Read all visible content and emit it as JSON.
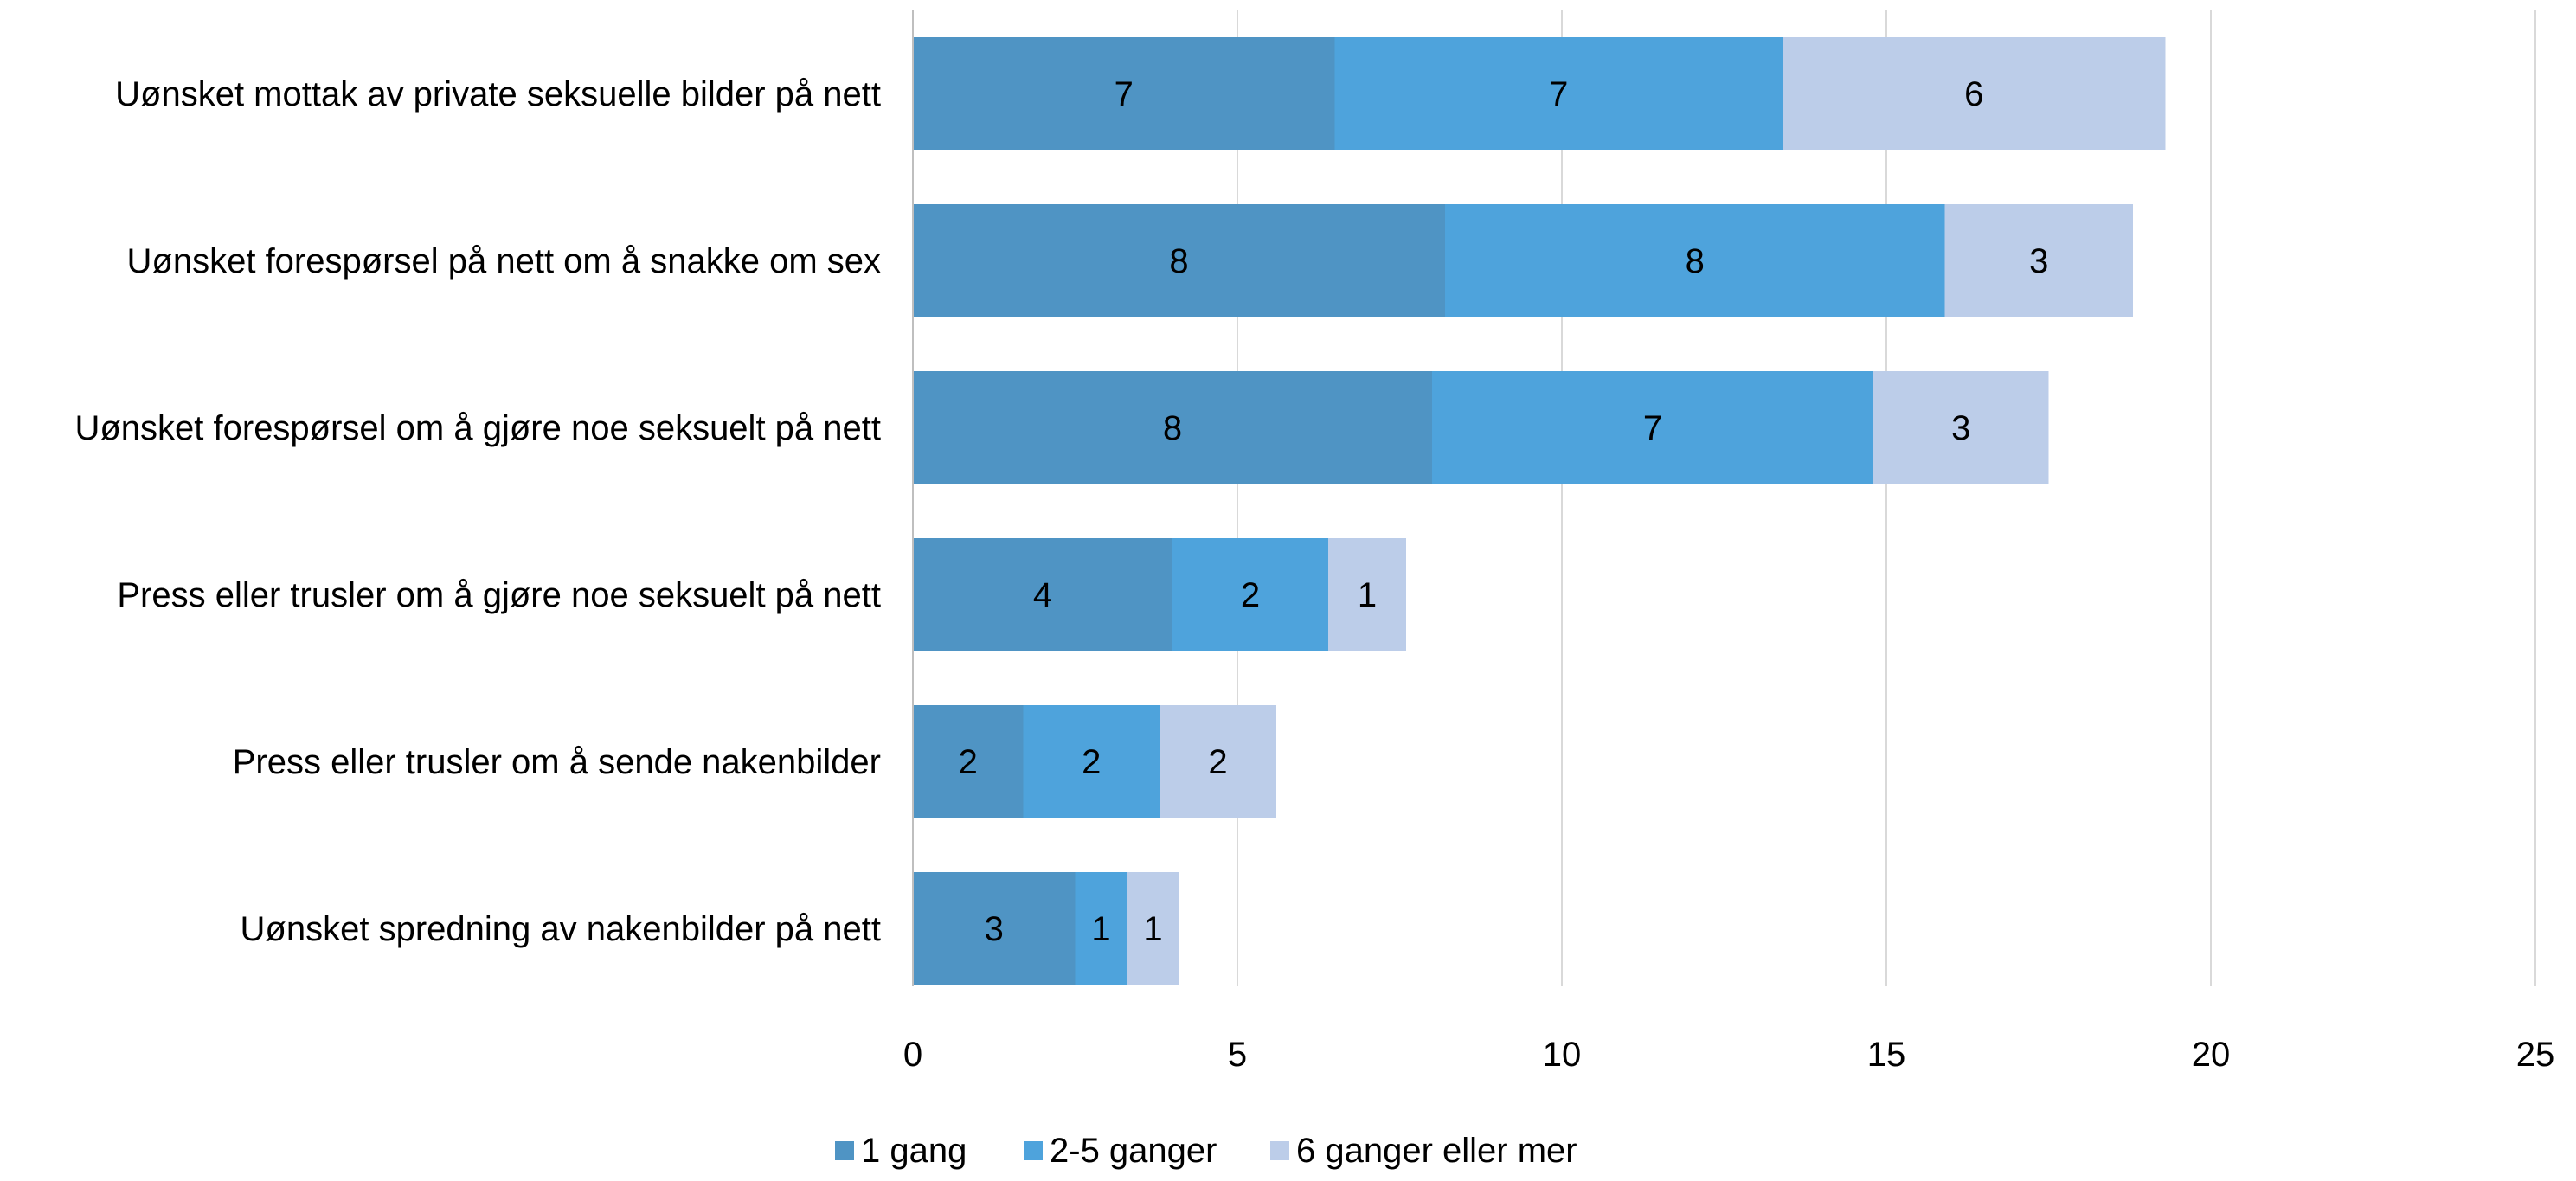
{
  "chart_data": {
    "type": "bar",
    "orientation": "horizontal",
    "stacked": true,
    "categories": [
      "Uønsket mottak av private seksuelle bilder på nett",
      "Uønsket forespørsel på nett om å snakke om sex",
      "Uønsket forespørsel om å gjøre noe seksuelt på nett",
      "Press eller trusler om å gjøre noe seksuelt på nett",
      "Press eller trusler om å sende nakenbilder",
      "Uønsket spredning av nakenbilder på nett"
    ],
    "series": [
      {
        "name": "1 gang",
        "color": "#4f94c4",
        "values": [
          6.5,
          8.2,
          8.0,
          4.0,
          1.7,
          2.5
        ],
        "labels": [
          "7",
          "8",
          "8",
          "4",
          "2",
          "3"
        ]
      },
      {
        "name": "2-5 ganger",
        "color": "#4ea3dc",
        "values": [
          6.9,
          7.7,
          6.8,
          2.4,
          2.1,
          0.8
        ],
        "labels": [
          "7",
          "8",
          "7",
          "2",
          "2",
          "1"
        ]
      },
      {
        "name": "6 ganger eller mer",
        "color": "#bccde9",
        "values": [
          5.9,
          2.9,
          2.7,
          1.2,
          1.8,
          0.8
        ],
        "labels": [
          "6",
          "3",
          "3",
          "1",
          "2",
          "1"
        ]
      }
    ],
    "xlim": [
      0,
      25
    ],
    "xticks": [
      "0",
      "5",
      "10",
      "15",
      "20",
      "25"
    ],
    "grid": true,
    "legend_position": "bottom"
  }
}
